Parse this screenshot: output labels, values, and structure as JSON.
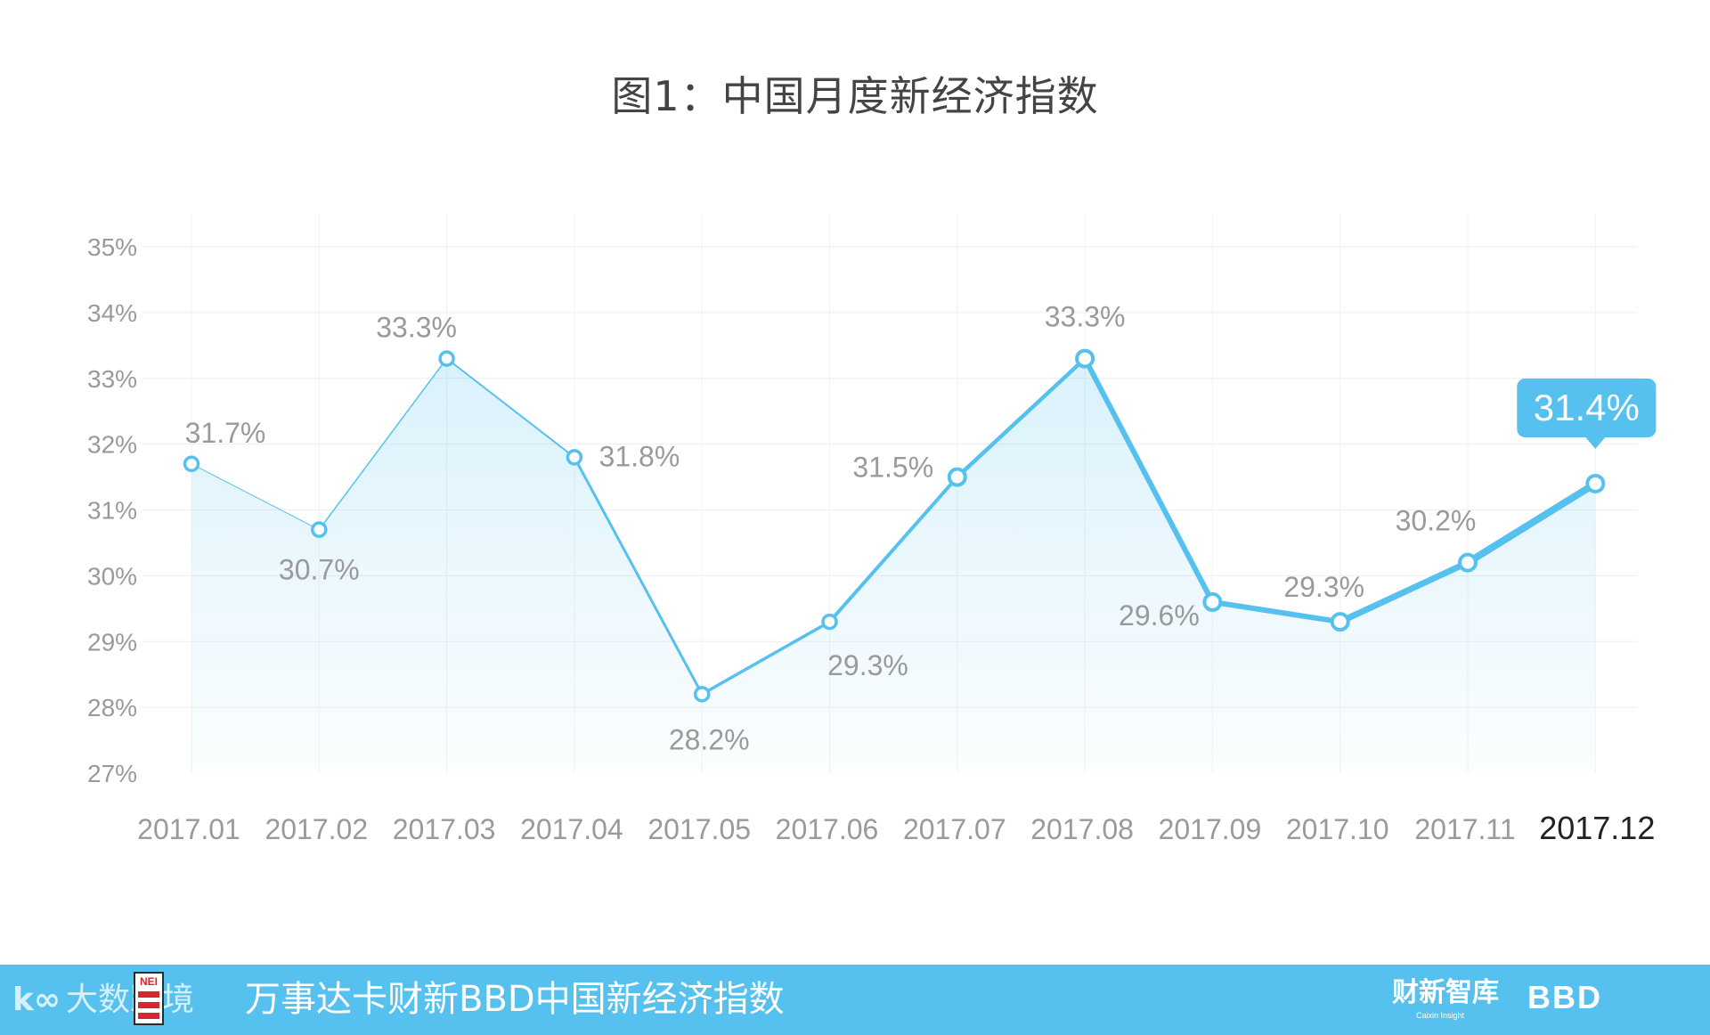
{
  "page": {
    "footer_title": "万事达卡财新BBD中国新经济指数",
    "footer_logo_caixin": "财新智库",
    "footer_logo_caixin_sub": "Caixin Insight",
    "footer_logo_bbd": "BBD",
    "footer_brand_left": "大数跨境",
    "footer_brand_left_glyph": "k∞",
    "footer_badge": "NEI",
    "colors": {
      "accent": "#56c1ee",
      "line": "#56c1ee",
      "text": "#444444",
      "muted": "#9a9a9a",
      "grid": "#eeeeee"
    }
  },
  "chart_data": {
    "type": "area",
    "title": "图1：中国月度新经济指数",
    "xlabel": "",
    "ylabel": "",
    "categories": [
      "2017.01",
      "2017.02",
      "2017.03",
      "2017.04",
      "2017.05",
      "2017.06",
      "2017.07",
      "2017.08",
      "2017.09",
      "2017.10",
      "2017.11",
      "2017.12"
    ],
    "series": [
      {
        "values": [
          31.7,
          30.7,
          33.3,
          31.8,
          28.2,
          29.3,
          31.5,
          33.3,
          29.6,
          29.3,
          30.2,
          31.4
        ]
      }
    ],
    "data_labels": [
      "31.7%",
      "30.7%",
      "33.3%",
      "31.8%",
      "28.2%",
      "29.3%",
      "31.5%",
      "33.3%",
      "29.6%",
      "29.3%",
      "30.2%",
      "31.4%"
    ],
    "ylim": [
      27,
      35
    ],
    "yticks": [
      27,
      28,
      29,
      30,
      31,
      32,
      33,
      34,
      35
    ],
    "ytick_labels": [
      "27%",
      "28%",
      "29%",
      "30%",
      "31%",
      "32%",
      "33%",
      "34%",
      "35%"
    ],
    "grid": true,
    "highlight_index": 11,
    "line_widths": [
      1,
      1.5,
      2,
      3,
      3.5,
      4,
      4.5,
      6,
      6,
      7,
      8
    ]
  }
}
